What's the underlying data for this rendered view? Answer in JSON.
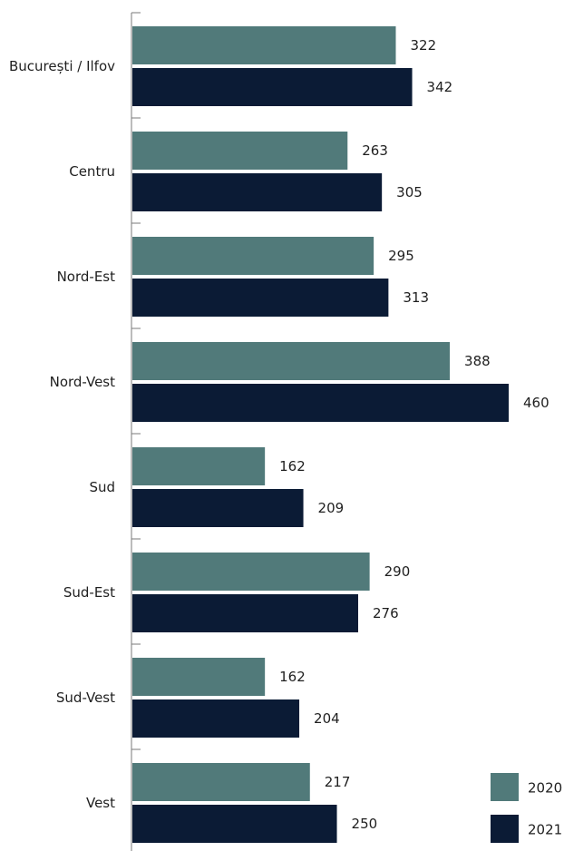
{
  "chart_data": {
    "type": "bar",
    "orientation": "horizontal",
    "categories": [
      "București / Ilfov",
      "Centru",
      "Nord-Est",
      "Nord-Vest",
      "Sud",
      "Sud-Est",
      "Sud-Vest",
      "Vest"
    ],
    "series": [
      {
        "name": "2020",
        "color": "#517a7a",
        "values": [
          322,
          263,
          295,
          388,
          162,
          290,
          162,
          217
        ]
      },
      {
        "name": "2021",
        "color": "#0b1b35",
        "values": [
          342,
          305,
          313,
          460,
          209,
          276,
          204,
          250
        ]
      }
    ],
    "xlim": [
      0,
      460
    ],
    "grid": false,
    "legend_position": "bottom-right",
    "data_labels": true
  }
}
